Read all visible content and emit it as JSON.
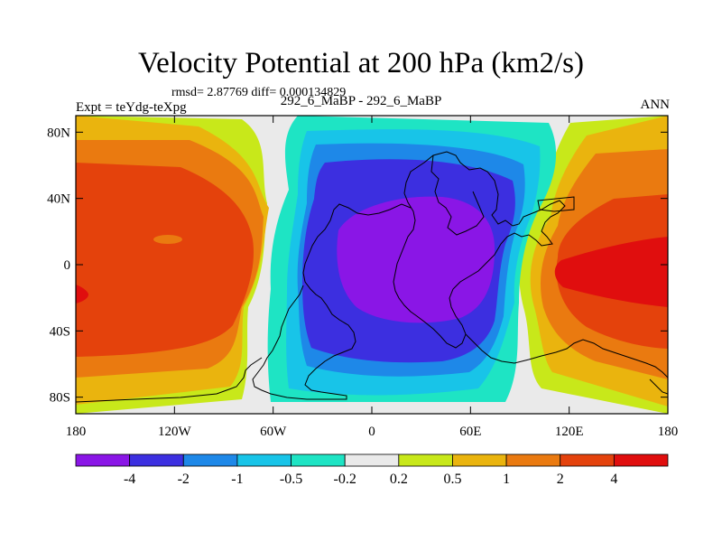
{
  "chart_data": {
    "type": "contour-map",
    "title": "Velocity Potential at 200 hPa (km2/s)",
    "stats": "rmsd= 2.87769 diff= 0.000134829",
    "left_label": "Expt = teYdg-teXpg",
    "center_label": "292_6_MaBP - 292_6_MaBP",
    "right_label": "ANN",
    "y_ticks": [
      "80N",
      "40N",
      "0",
      "40S",
      "80S"
    ],
    "x_ticks": [
      "180",
      "120W",
      "60W",
      "0",
      "60E",
      "120E",
      "180"
    ],
    "xlim": [
      -180,
      180
    ],
    "ylim": [
      -90,
      90
    ],
    "colorbar": {
      "labels": [
        "-4",
        "-2",
        "-1",
        "-0.5",
        "-0.2",
        "0.2",
        "0.5",
        "1",
        "2",
        "4"
      ],
      "colors": [
        "#8a16e6",
        "#3c2fe0",
        "#1e88e8",
        "#18c4e8",
        "#1ee4c4",
        "#eaeaea",
        "#c8e81a",
        "#eab40e",
        "#ea7a10",
        "#e4420c",
        "#e00e0e"
      ]
    },
    "fields": {
      "positive_center": {
        "lon": 170,
        "lat": -5,
        "max_level": "4"
      },
      "negative_center": {
        "lon": 30,
        "lat": 15,
        "min_level": "-4"
      }
    }
  }
}
